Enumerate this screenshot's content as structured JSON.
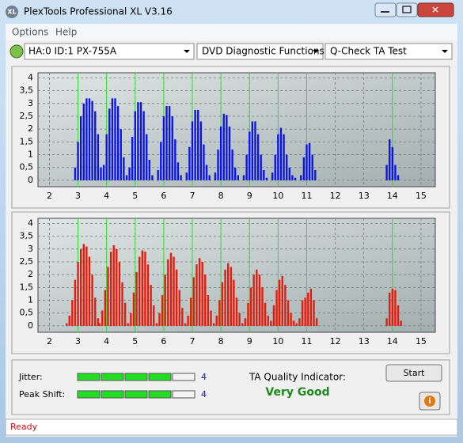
{
  "window": {
    "icon": "XL",
    "title": "PlexTools Professional XL V3.16",
    "menu": [
      "Options",
      "Help"
    ],
    "toolbar": [
      "HA:0 ID:1  PX-755A",
      "DVD Diagnostic Functions",
      "Q-Check TA Test"
    ]
  },
  "chart_data": [
    {
      "type": "histogram",
      "color": "#0a14e6",
      "marker_color": "#33dd33",
      "markers": [
        3,
        4,
        5,
        6,
        7,
        8,
        9,
        10,
        11,
        14
      ],
      "grid": true,
      "xlim": [
        1.6,
        15.5
      ],
      "ylim": [
        -0.25,
        4.2
      ],
      "xticks": [
        2,
        3,
        4,
        5,
        6,
        7,
        8,
        9,
        10,
        11,
        12,
        13,
        14,
        15
      ],
      "yticks": [
        0,
        {
          "value": 0.5,
          "label": "0,5"
        },
        1,
        {
          "value": 1.5,
          "label": "1,5"
        },
        2,
        {
          "value": 2.5,
          "label": "2,5"
        },
        3,
        {
          "value": 3.5,
          "label": "3,5"
        },
        4
      ],
      "x": [
        2.9,
        3.0,
        3.1,
        3.2,
        3.3,
        3.4,
        3.5,
        3.6,
        3.7,
        3.8,
        3.9,
        4.0,
        4.1,
        4.2,
        4.3,
        4.4,
        4.5,
        4.6,
        4.7,
        4.8,
        4.9,
        5.0,
        5.1,
        5.2,
        5.3,
        5.4,
        5.5,
        5.6,
        5.8,
        5.9,
        6.0,
        6.1,
        6.2,
        6.3,
        6.4,
        6.5,
        6.6,
        6.8,
        6.9,
        7.0,
        7.1,
        7.2,
        7.3,
        7.4,
        7.5,
        7.6,
        7.8,
        7.9,
        8.0,
        8.1,
        8.2,
        8.3,
        8.4,
        8.5,
        8.6,
        8.8,
        8.9,
        9.0,
        9.1,
        9.2,
        9.3,
        9.4,
        9.5,
        9.6,
        9.8,
        9.9,
        10.0,
        10.1,
        10.2,
        10.3,
        10.4,
        10.5,
        10.6,
        10.8,
        10.9,
        11.0,
        11.1,
        11.2,
        11.3,
        13.8,
        13.9,
        14.0,
        14.1,
        14.2
      ],
      "values": [
        0.5,
        1.5,
        2.5,
        3.0,
        3.2,
        3.2,
        3.1,
        2.7,
        1.8,
        0.5,
        0.6,
        1.8,
        2.8,
        3.2,
        3.2,
        2.9,
        2.0,
        0.9,
        0.2,
        0.5,
        1.7,
        2.7,
        3.05,
        3.05,
        2.7,
        1.8,
        0.8,
        0.2,
        0.4,
        1.5,
        2.5,
        2.9,
        2.9,
        2.5,
        1.6,
        0.7,
        0.2,
        0.3,
        1.3,
        2.3,
        2.75,
        2.75,
        2.3,
        1.4,
        0.6,
        0.2,
        0.3,
        1.2,
        2.1,
        2.6,
        2.55,
        2.1,
        1.2,
        0.5,
        0.2,
        0.2,
        1.0,
        1.9,
        2.3,
        2.3,
        1.8,
        1.0,
        0.4,
        0.1,
        0.3,
        1.0,
        1.8,
        2.05,
        1.8,
        1.0,
        0.5,
        0.2,
        0.1,
        0.2,
        0.9,
        1.4,
        1.45,
        1.0,
        0.4,
        0.6,
        1.6,
        1.3,
        0.6,
        0.2
      ]
    },
    {
      "type": "histogram",
      "color": "#e61a0a",
      "marker_color": "#33dd33",
      "markers": [
        3,
        4,
        5,
        6,
        7,
        8,
        9,
        10,
        11,
        14
      ],
      "grid": true,
      "xlim": [
        1.6,
        15.5
      ],
      "ylim": [
        -0.25,
        4.2
      ],
      "xticks": [
        2,
        3,
        4,
        5,
        6,
        7,
        8,
        9,
        10,
        11,
        12,
        13,
        14,
        15
      ],
      "yticks": [
        0,
        {
          "value": 0.5,
          "label": "0,5"
        },
        1,
        {
          "value": 1.5,
          "label": "1,5"
        },
        2,
        {
          "value": 2.5,
          "label": "2,5"
        },
        3,
        {
          "value": 3.5,
          "label": "3,5"
        },
        4
      ],
      "x": [
        2.6,
        2.7,
        2.8,
        2.9,
        3.0,
        3.1,
        3.2,
        3.3,
        3.4,
        3.5,
        3.6,
        3.7,
        3.75,
        3.85,
        3.95,
        4.05,
        4.15,
        4.25,
        4.35,
        4.45,
        4.55,
        4.65,
        4.75,
        4.85,
        4.95,
        5.05,
        5.15,
        5.25,
        5.35,
        5.45,
        5.55,
        5.65,
        5.75,
        5.85,
        5.95,
        6.05,
        6.15,
        6.25,
        6.35,
        6.45,
        6.55,
        6.65,
        6.75,
        6.85,
        6.95,
        7.05,
        7.15,
        7.25,
        7.35,
        7.45,
        7.55,
        7.65,
        7.75,
        7.85,
        7.95,
        8.05,
        8.15,
        8.25,
        8.35,
        8.45,
        8.55,
        8.65,
        8.75,
        8.85,
        8.95,
        9.05,
        9.15,
        9.25,
        9.35,
        9.45,
        9.55,
        9.65,
        9.75,
        9.85,
        9.95,
        10.05,
        10.15,
        10.25,
        10.35,
        10.45,
        10.55,
        10.65,
        10.75,
        10.85,
        10.95,
        11.05,
        11.15,
        11.25,
        11.35,
        13.8,
        13.9,
        14.0,
        14.1,
        14.2,
        14.3
      ],
      "values": [
        0.1,
        0.4,
        1.0,
        1.8,
        2.5,
        3.0,
        3.2,
        3.1,
        2.7,
        2.0,
        1.1,
        0.3,
        0.1,
        0.6,
        1.4,
        2.3,
        2.9,
        3.15,
        3.0,
        2.5,
        1.7,
        0.9,
        0.1,
        0.5,
        1.3,
        2.1,
        2.7,
        2.95,
        2.9,
        2.4,
        1.6,
        0.8,
        0.1,
        0.5,
        1.2,
        2.0,
        2.6,
        2.85,
        2.7,
        2.2,
        1.4,
        0.7,
        0.1,
        0.4,
        1.1,
        1.9,
        2.4,
        2.65,
        2.5,
        2.0,
        1.2,
        0.6,
        0.1,
        0.4,
        1.0,
        1.7,
        2.2,
        2.45,
        2.3,
        1.8,
        1.1,
        0.5,
        0.1,
        0.3,
        0.9,
        1.5,
        2.0,
        2.2,
        2.0,
        1.5,
        0.9,
        0.4,
        0.2,
        0.8,
        1.4,
        1.8,
        1.95,
        1.6,
        1.0,
        0.5,
        0.2,
        0.1,
        0.3,
        1.0,
        1.1,
        1.3,
        1.45,
        1.0,
        0.3,
        0.3,
        1.3,
        1.45,
        1.4,
        0.8,
        0.2
      ]
    }
  ],
  "panel": {
    "jitter": {
      "label": "Jitter:",
      "value": 4,
      "segments": 5
    },
    "peak_shift": {
      "label": "Peak Shift:",
      "value": 4,
      "segments": 5
    },
    "indicator_label": "TA Quality Indicator:",
    "indicator_value": "Very Good",
    "button": "Start",
    "info": "i"
  },
  "status": "Ready"
}
